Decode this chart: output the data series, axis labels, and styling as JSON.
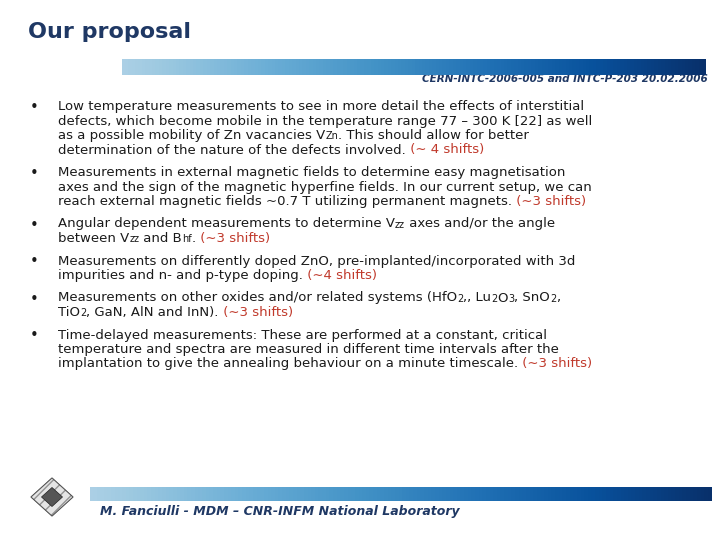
{
  "title": "Our proposal",
  "subtitle": "CERN-INTC-2006-005 and INTC-P-203 20.02.2006",
  "title_color": "#1f3864",
  "subtitle_color": "#1f3864",
  "bg_color": "#ffffff",
  "text_color": "#1a1a1a",
  "highlight_color": "#c0392b",
  "footer": "M. Fanciulli - MDM – CNR-INFM National Laboratory",
  "footer_color": "#1f3864",
  "bullet_fs": 9.5,
  "title_fs": 16,
  "subtitle_fs": 7.5
}
